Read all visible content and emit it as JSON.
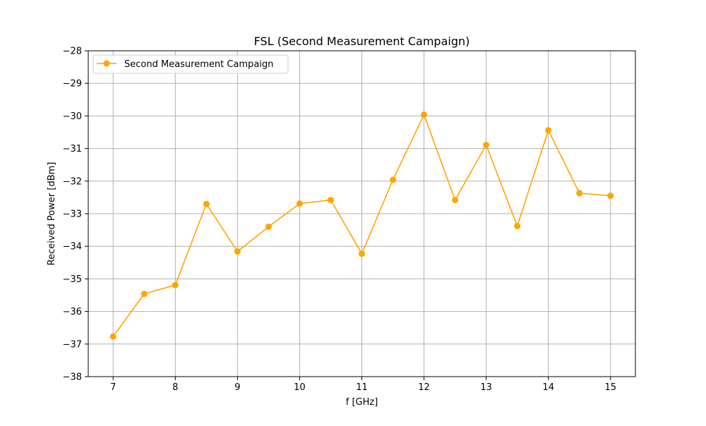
{
  "chart_data": {
    "type": "line",
    "title": "FSL (Second Measurement Campaign)",
    "xlabel": "f [GHz]",
    "ylabel": "Received Power [dBm]",
    "xlim": [
      6.6,
      15.4
    ],
    "ylim": [
      -38,
      -28
    ],
    "xticks": [
      7,
      8,
      9,
      10,
      11,
      12,
      13,
      14,
      15
    ],
    "xtick_labels": [
      "7",
      "8",
      "9",
      "10",
      "11",
      "12",
      "13",
      "14",
      "15"
    ],
    "yticks": [
      -38,
      -37,
      -36,
      -35,
      -34,
      -33,
      -32,
      -31,
      -30,
      -29,
      -28
    ],
    "ytick_labels": [
      "−38",
      "−37",
      "−36",
      "−35",
      "−34",
      "−33",
      "−32",
      "−31",
      "−30",
      "−29",
      "−28"
    ],
    "grid": true,
    "legend_position": "top-left",
    "series": [
      {
        "name": "Second Measurement Campaign",
        "color": "#FFA500",
        "marker": "circle",
        "x": [
          7,
          7.5,
          8,
          8.5,
          9,
          9.5,
          10,
          10.5,
          11,
          11.5,
          12,
          12.5,
          13,
          13.5,
          14,
          14.5,
          15
        ],
        "y": [
          -36.77,
          -35.46,
          -35.19,
          -32.7,
          -34.16,
          -33.4,
          -32.69,
          -32.58,
          -34.23,
          -31.96,
          -29.96,
          -32.58,
          -30.89,
          -33.38,
          -30.44,
          -32.37,
          -32.45
        ]
      }
    ]
  }
}
